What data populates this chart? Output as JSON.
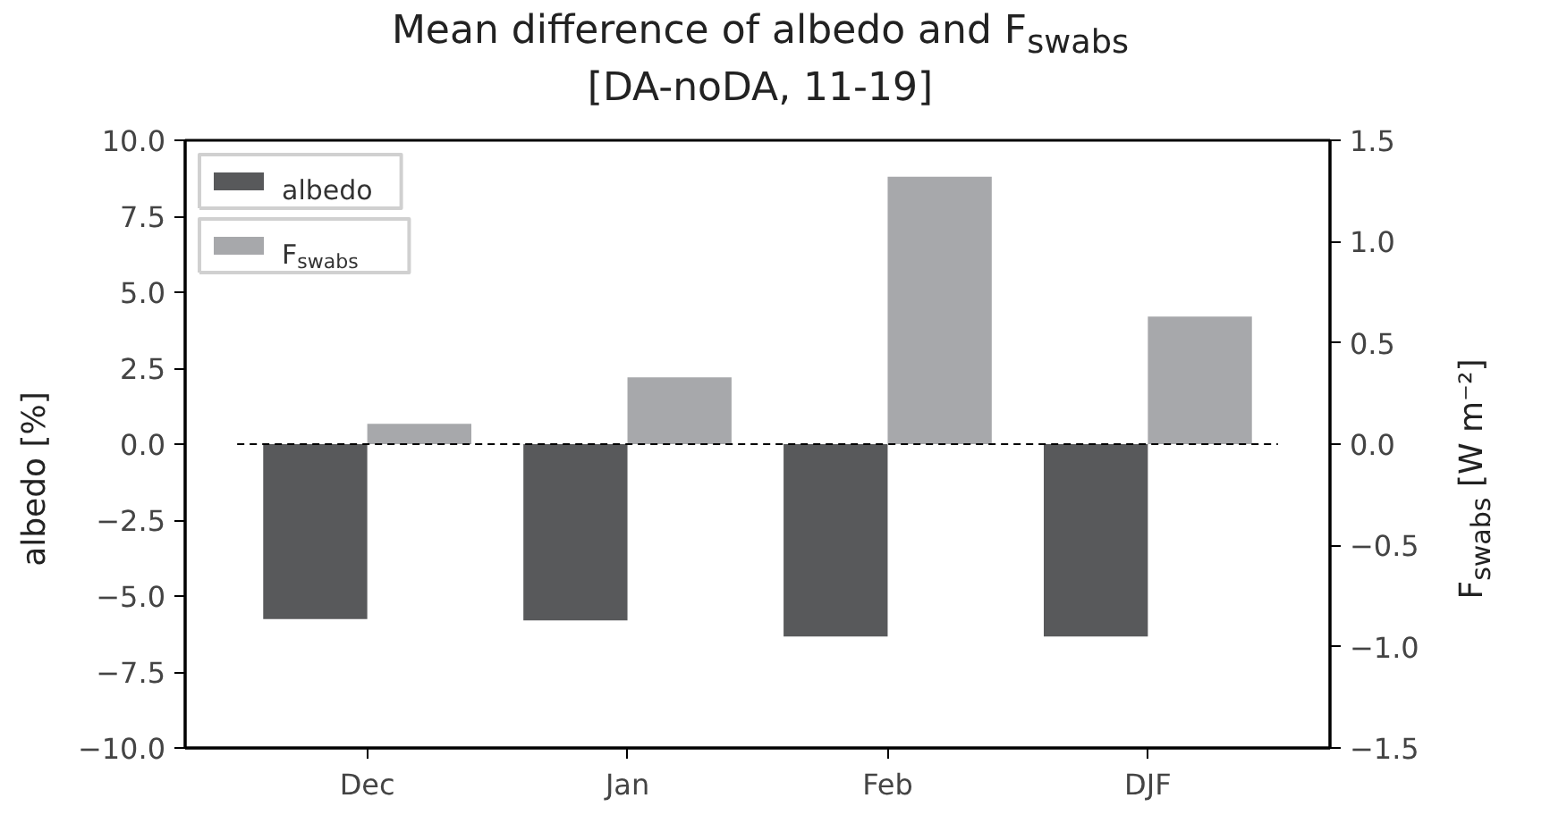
{
  "chart_data": {
    "type": "bar",
    "title": "Mean difference of albedo and F$_{swabs}$",
    "subtitle": "[DA-noDA, 11-19]",
    "ylabel": "albedo [%]",
    "y2label": "F$_{swabs}$ [W m⁻²]",
    "categories": [
      "Dec",
      "Jan",
      "Feb",
      "DJF"
    ],
    "series": [
      {
        "name": "albedo",
        "color": "#58595b",
        "values": [
          -5.76,
          -5.8,
          -6.33,
          -6.33
        ]
      },
      {
        "name": "F$_{swabs}$",
        "color": "#a7a8ab",
        "values": [
          0.1,
          0.33,
          1.32,
          0.63
        ],
        "axis": "y2"
      }
    ],
    "ylim": [
      -10,
      10
    ],
    "yticks": [
      {
        "value": -10,
        "label": "−10.0"
      },
      {
        "value": -7.5,
        "label": "−7.5"
      },
      {
        "value": -5,
        "label": "−5.0"
      },
      {
        "value": -2.5,
        "label": "−2.5"
      },
      {
        "value": 0,
        "label": "0.0"
      },
      {
        "value": 2.5,
        "label": "2.5"
      },
      {
        "value": 5,
        "label": "5.0"
      },
      {
        "value": 7.5,
        "label": "7.5"
      },
      {
        "value": 10,
        "label": "10.0"
      }
    ],
    "y2lim": [
      -1.5,
      1.5
    ],
    "y2ticks": [
      {
        "value": -1.5,
        "label": "−1.5"
      },
      {
        "value": -1,
        "label": "−1.0"
      },
      {
        "value": -0.5,
        "label": "−0.5"
      },
      {
        "value": 0,
        "label": "0.0"
      },
      {
        "value": 0.5,
        "label": "0.5"
      },
      {
        "value": 1,
        "label": "1.0"
      },
      {
        "value": 1.5,
        "label": "1.5"
      }
    ],
    "ref_lines": [
      {
        "axis": "y",
        "value": 0,
        "color": "#000000",
        "line_style": "dashed"
      }
    ],
    "grid": false,
    "legend": "top left"
  }
}
